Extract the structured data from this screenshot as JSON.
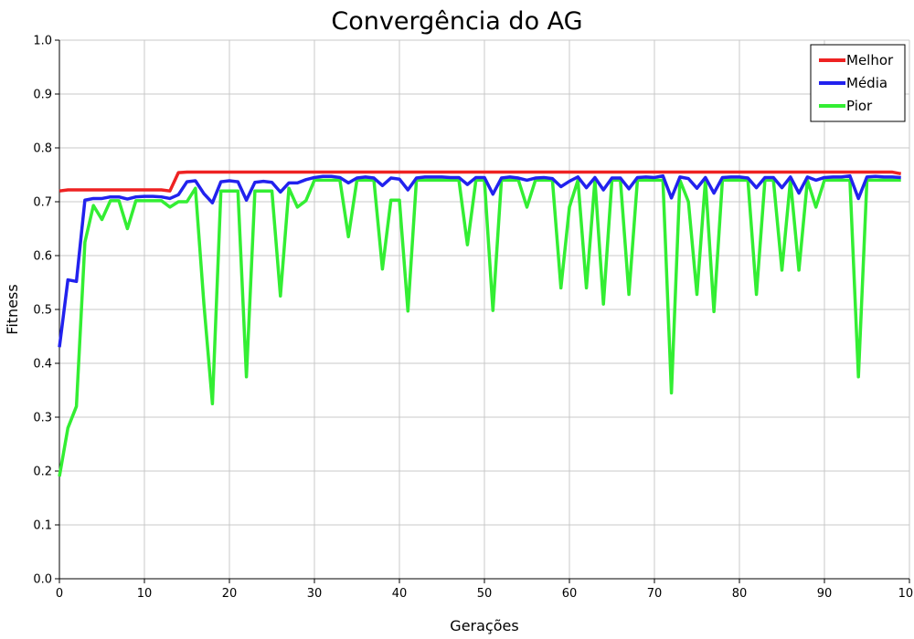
{
  "chart_data": {
    "type": "line",
    "title": "Convergência do AG",
    "xlabel": "Gerações",
    "ylabel": "Fitness",
    "xlim": [
      0,
      100
    ],
    "ylim": [
      0,
      1
    ],
    "xticks": [
      0,
      10,
      20,
      30,
      40,
      50,
      60,
      70,
      80,
      90,
      100
    ],
    "yticks": [
      0,
      0.1,
      0.2,
      0.3,
      0.4,
      0.5,
      0.6,
      0.7,
      0.8,
      0.9,
      1.0
    ],
    "xtick_labels": [
      "0",
      "10",
      "20",
      "30",
      "40",
      "50",
      "60",
      "70",
      "80",
      "90",
      "100"
    ],
    "ytick_labels": [
      "0.0",
      "0.1",
      "0.2",
      "0.3",
      "0.4",
      "0.5",
      "0.6",
      "0.7",
      "0.8",
      "0.9",
      "1.0"
    ],
    "grid": true,
    "legend_position": "top-right",
    "x": [
      0,
      1,
      2,
      3,
      4,
      5,
      6,
      7,
      8,
      9,
      10,
      11,
      12,
      13,
      14,
      15,
      16,
      17,
      18,
      19,
      20,
      21,
      22,
      23,
      24,
      25,
      26,
      27,
      28,
      29,
      30,
      31,
      32,
      33,
      34,
      35,
      36,
      37,
      38,
      39,
      40,
      41,
      42,
      43,
      44,
      45,
      46,
      47,
      48,
      49,
      50,
      51,
      52,
      53,
      54,
      55,
      56,
      57,
      58,
      59,
      60,
      61,
      62,
      63,
      64,
      65,
      66,
      67,
      68,
      69,
      70,
      71,
      72,
      73,
      74,
      75,
      76,
      77,
      78,
      79,
      80,
      81,
      82,
      83,
      84,
      85,
      86,
      87,
      88,
      89,
      90,
      91,
      92,
      93,
      94,
      95,
      96,
      97,
      98,
      99
    ],
    "series": [
      {
        "name": "Melhor",
        "color": "#ee2222",
        "values": [
          0.72,
          0.722,
          0.722,
          0.722,
          0.722,
          0.722,
          0.722,
          0.722,
          0.722,
          0.722,
          0.722,
          0.722,
          0.722,
          0.72,
          0.754,
          0.755,
          0.755,
          0.755,
          0.755,
          0.755,
          0.755,
          0.755,
          0.755,
          0.755,
          0.755,
          0.755,
          0.755,
          0.755,
          0.755,
          0.755,
          0.755,
          0.755,
          0.755,
          0.755,
          0.755,
          0.755,
          0.755,
          0.755,
          0.755,
          0.755,
          0.755,
          0.755,
          0.755,
          0.755,
          0.755,
          0.755,
          0.755,
          0.755,
          0.755,
          0.755,
          0.755,
          0.755,
          0.755,
          0.755,
          0.755,
          0.755,
          0.755,
          0.755,
          0.755,
          0.755,
          0.755,
          0.755,
          0.755,
          0.755,
          0.755,
          0.755,
          0.755,
          0.755,
          0.755,
          0.755,
          0.755,
          0.755,
          0.755,
          0.755,
          0.755,
          0.755,
          0.755,
          0.755,
          0.755,
          0.755,
          0.755,
          0.755,
          0.755,
          0.755,
          0.755,
          0.755,
          0.755,
          0.755,
          0.755,
          0.755,
          0.755,
          0.755,
          0.755,
          0.755,
          0.755,
          0.755,
          0.755,
          0.755,
          0.755,
          0.752
        ]
      },
      {
        "name": "Média",
        "color": "#2222ee",
        "values": [
          0.43,
          0.555,
          0.552,
          0.703,
          0.706,
          0.706,
          0.709,
          0.709,
          0.705,
          0.709,
          0.71,
          0.71,
          0.709,
          0.706,
          0.713,
          0.737,
          0.739,
          0.715,
          0.698,
          0.737,
          0.739,
          0.737,
          0.703,
          0.736,
          0.738,
          0.736,
          0.718,
          0.735,
          0.735,
          0.741,
          0.745,
          0.747,
          0.747,
          0.745,
          0.735,
          0.744,
          0.746,
          0.744,
          0.73,
          0.744,
          0.742,
          0.722,
          0.744,
          0.746,
          0.746,
          0.746,
          0.745,
          0.745,
          0.732,
          0.745,
          0.745,
          0.714,
          0.744,
          0.746,
          0.744,
          0.74,
          0.744,
          0.745,
          0.743,
          0.728,
          0.738,
          0.746,
          0.726,
          0.745,
          0.722,
          0.744,
          0.744,
          0.724,
          0.745,
          0.746,
          0.745,
          0.748,
          0.707,
          0.746,
          0.743,
          0.725,
          0.745,
          0.716,
          0.745,
          0.746,
          0.746,
          0.744,
          0.726,
          0.745,
          0.745,
          0.726,
          0.746,
          0.716,
          0.746,
          0.74,
          0.745,
          0.746,
          0.746,
          0.748,
          0.706,
          0.746,
          0.747,
          0.746,
          0.746,
          0.745
        ]
      },
      {
        "name": "Pior",
        "color": "#33ee33",
        "values": [
          0.19,
          0.28,
          0.32,
          0.625,
          0.693,
          0.667,
          0.702,
          0.702,
          0.65,
          0.702,
          0.702,
          0.702,
          0.702,
          0.69,
          0.7,
          0.7,
          0.725,
          0.51,
          0.325,
          0.72,
          0.72,
          0.72,
          0.375,
          0.72,
          0.72,
          0.72,
          0.525,
          0.725,
          0.69,
          0.702,
          0.74,
          0.74,
          0.74,
          0.74,
          0.635,
          0.74,
          0.74,
          0.74,
          0.575,
          0.703,
          0.703,
          0.497,
          0.74,
          0.74,
          0.74,
          0.74,
          0.74,
          0.74,
          0.62,
          0.74,
          0.74,
          0.498,
          0.74,
          0.74,
          0.74,
          0.69,
          0.74,
          0.74,
          0.74,
          0.54,
          0.69,
          0.74,
          0.54,
          0.74,
          0.51,
          0.74,
          0.74,
          0.528,
          0.74,
          0.74,
          0.74,
          0.74,
          0.345,
          0.74,
          0.7,
          0.528,
          0.74,
          0.496,
          0.74,
          0.74,
          0.74,
          0.74,
          0.528,
          0.74,
          0.74,
          0.573,
          0.74,
          0.573,
          0.74,
          0.69,
          0.74,
          0.74,
          0.74,
          0.74,
          0.375,
          0.74,
          0.74,
          0.74,
          0.74,
          0.74
        ]
      }
    ]
  }
}
